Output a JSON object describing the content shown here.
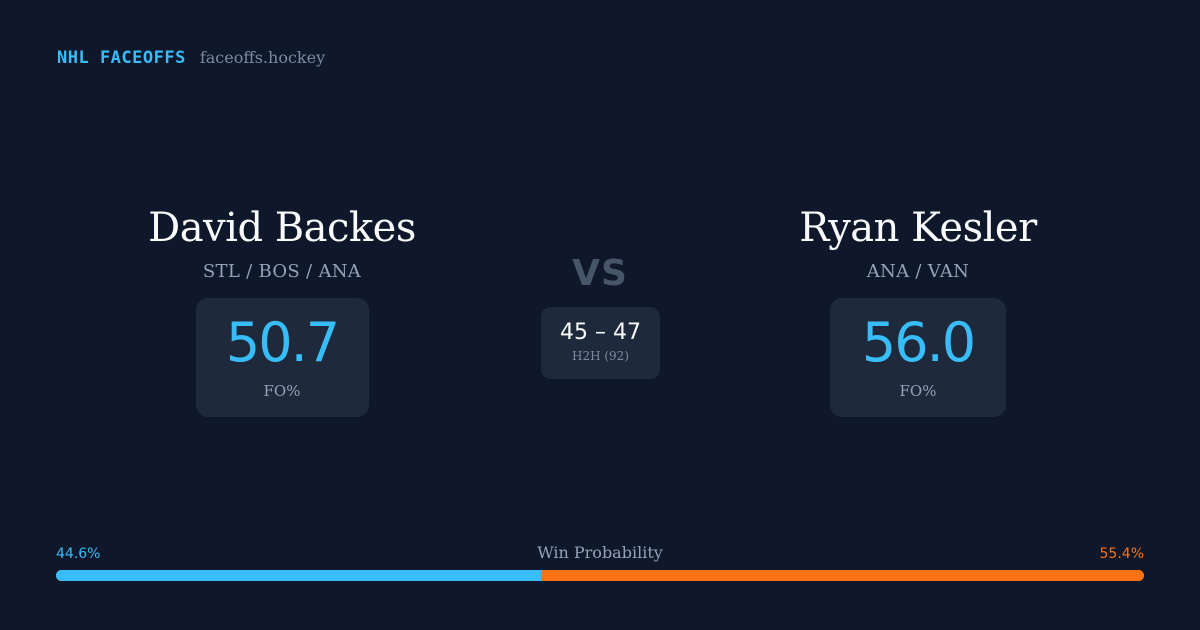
{
  "brand": {
    "title": "NHL FACEOFFS",
    "site": "faceoffs.hockey"
  },
  "player1": {
    "name": "David Backes",
    "teams": "STL / BOS / ANA",
    "fo_pct": "50.7",
    "fo_label": "FO%"
  },
  "player2": {
    "name": "Ryan Kesler",
    "teams": "ANA / VAN",
    "fo_pct": "56.0",
    "fo_label": "FO%"
  },
  "versus": {
    "label": "VS",
    "h2h_score": "45 – 47",
    "h2h_label": "H2H (92)"
  },
  "win_probability": {
    "title": "Win Probability",
    "left_label": "44.6%",
    "right_label": "55.4%",
    "left_value": 44.6,
    "right_value": 55.4
  },
  "colors": {
    "accent_left": "#38bdf8",
    "accent_right": "#f97316",
    "background": "#0f172a",
    "card": "#1e293b"
  }
}
